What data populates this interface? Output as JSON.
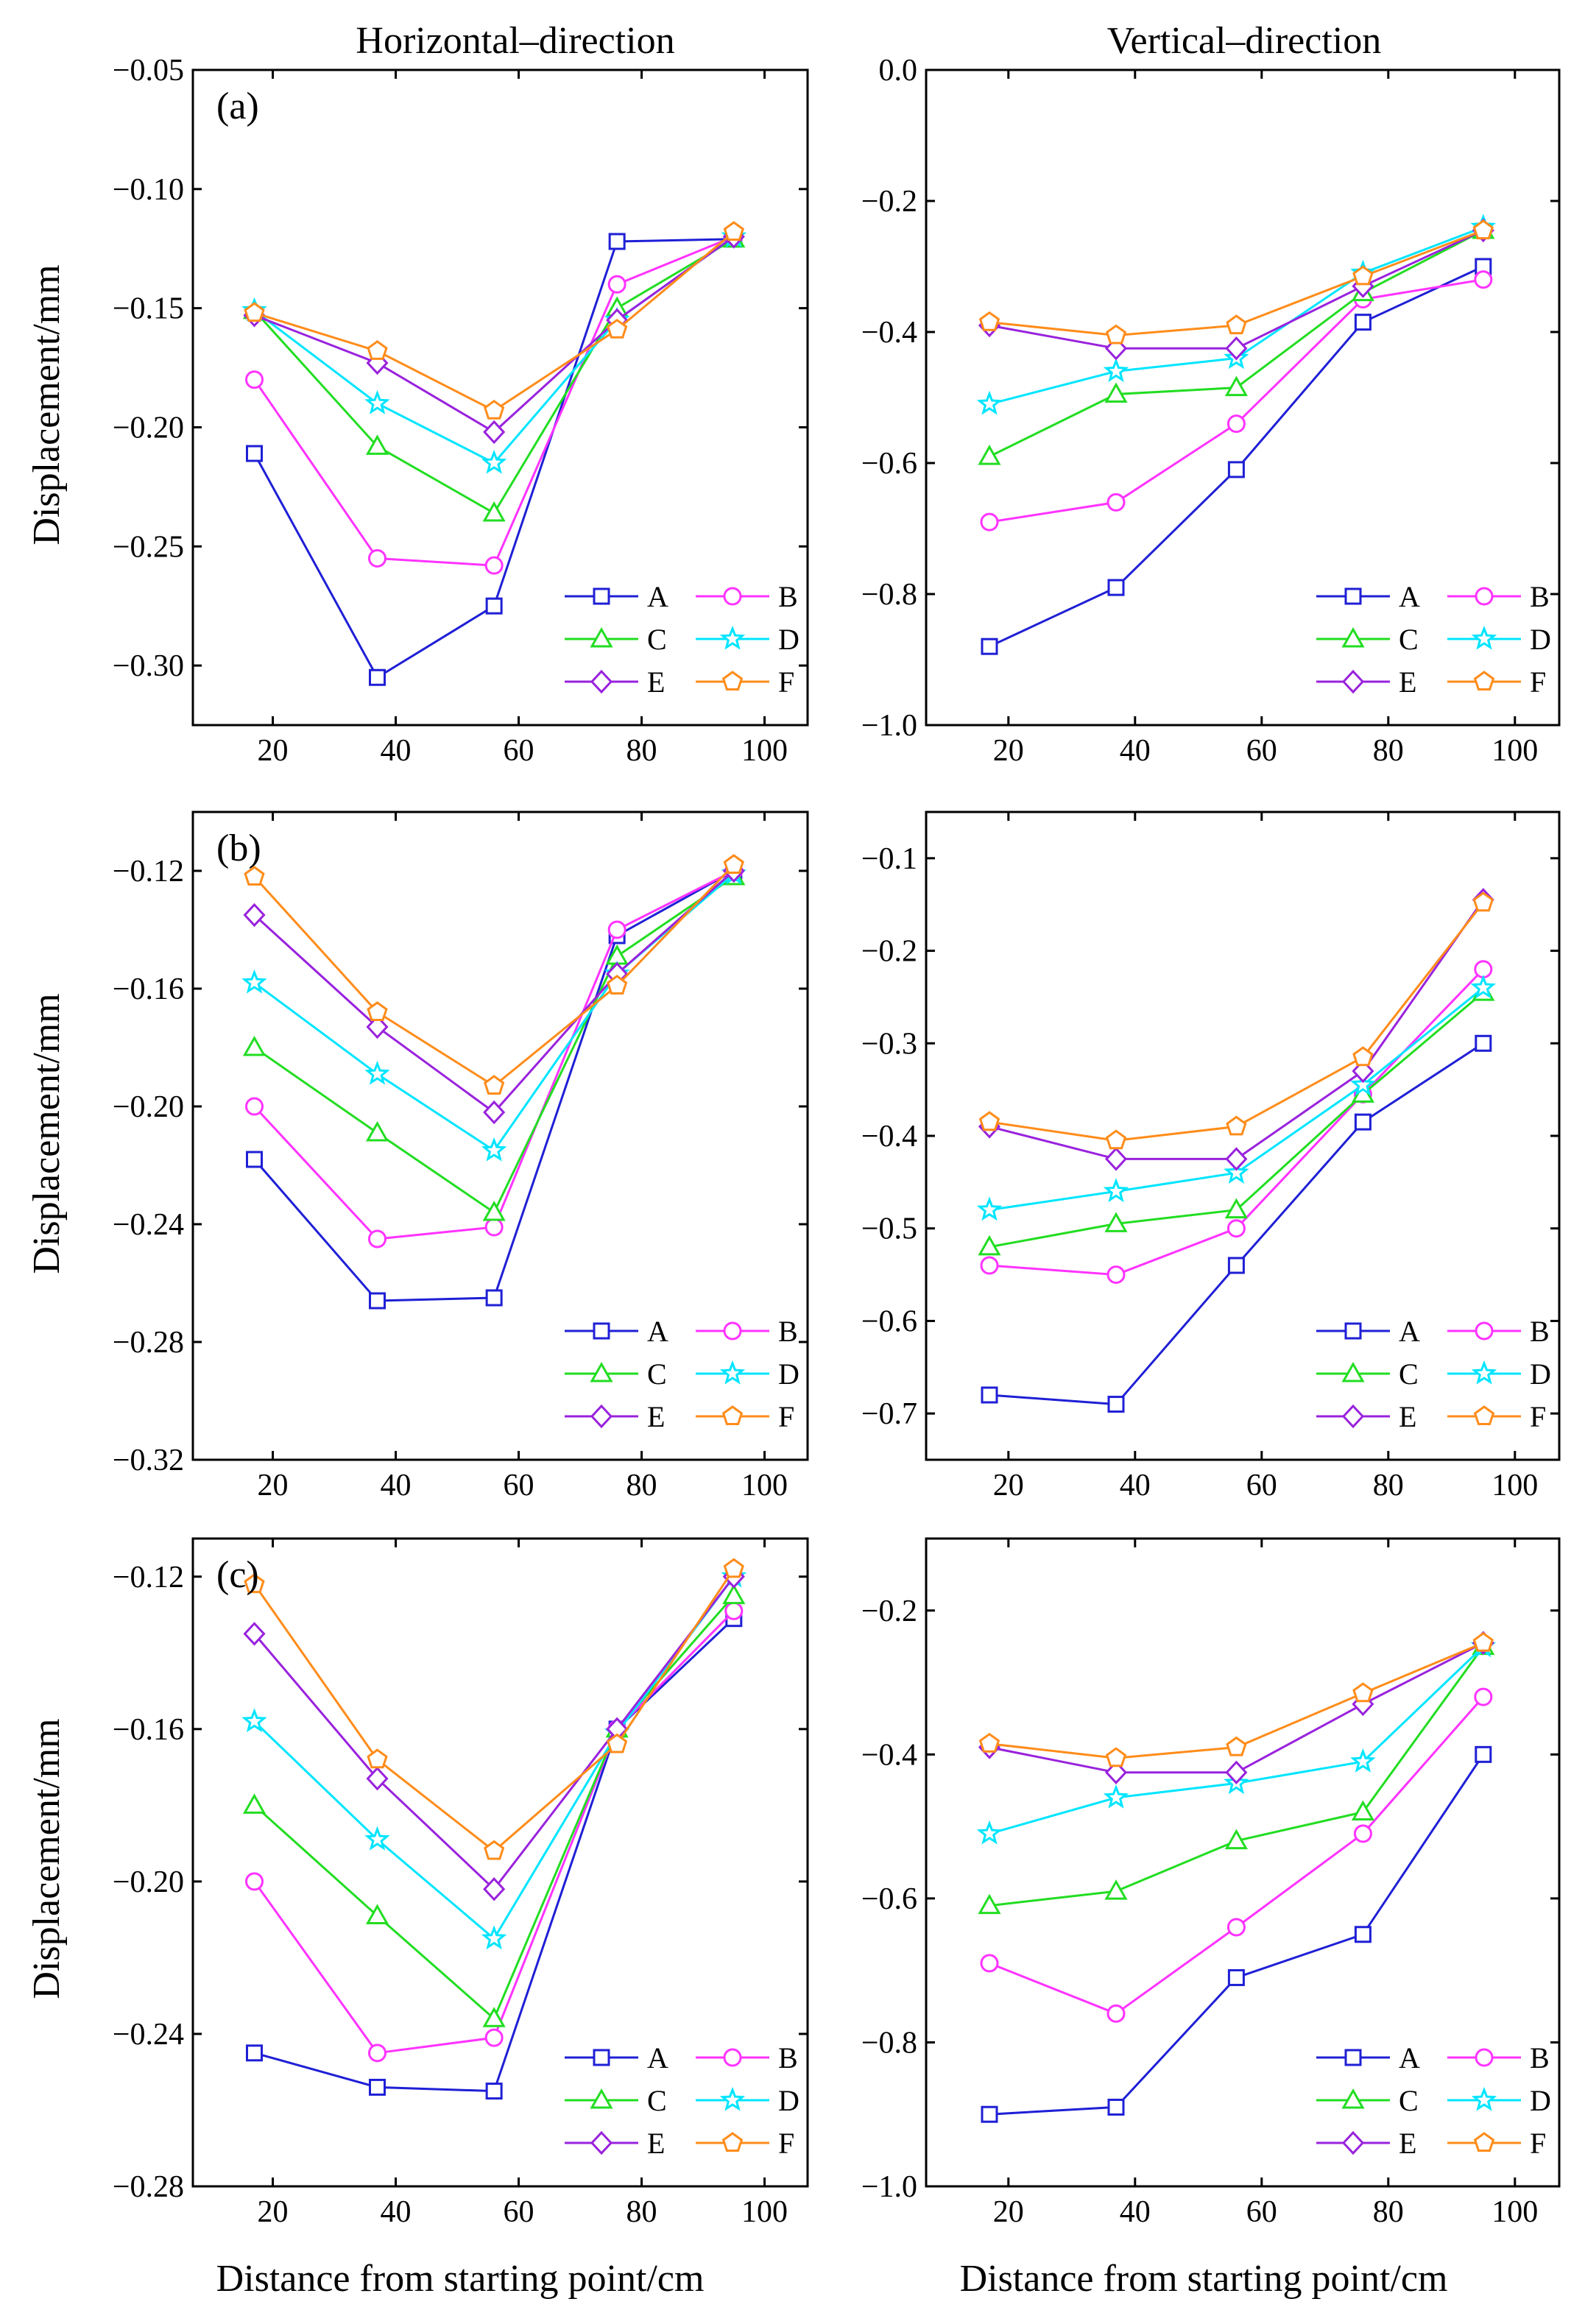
{
  "figure": {
    "column_titles": [
      "Horizontal–direction",
      "Vertical–direction"
    ],
    "xlabel": "Distance from starting point/cm",
    "ylabel": "Displacement/mm"
  },
  "chart_data": [
    {
      "type": "line",
      "panel_label": "(a)",
      "title": "",
      "xlabel": "Distance from starting point/cm",
      "ylabel": "Displacement/mm",
      "x": [
        17,
        37,
        56,
        76,
        95
      ],
      "xlim": [
        7,
        107
      ],
      "ylim": [
        -0.325,
        -0.05
      ],
      "xticks": [
        20,
        40,
        60,
        80,
        100
      ],
      "xtick_labels": [
        "20",
        "40",
        "60",
        "80",
        "100"
      ],
      "yticks": [
        -0.05,
        -0.1,
        -0.15,
        -0.2,
        -0.25,
        -0.3
      ],
      "ytick_labels": [
        "−0.05",
        "−0.10",
        "−0.15",
        "−0.20",
        "−0.25",
        "−0.30"
      ],
      "legend_position": "bottom-right",
      "series": [
        {
          "name": "A",
          "color": "#1f1fd6",
          "marker": "square",
          "values": [
            -0.211,
            -0.305,
            -0.275,
            -0.122,
            -0.121
          ]
        },
        {
          "name": "B",
          "color": "#ff33ff",
          "marker": "circle",
          "values": [
            -0.18,
            -0.255,
            -0.258,
            -0.14,
            -0.12
          ]
        },
        {
          "name": "C",
          "color": "#22dd22",
          "marker": "triangle",
          "values": [
            -0.151,
            -0.208,
            -0.236,
            -0.15,
            -0.121
          ]
        },
        {
          "name": "D",
          "color": "#00e5ff",
          "marker": "star",
          "values": [
            -0.151,
            -0.19,
            -0.215,
            -0.155,
            -0.12
          ]
        },
        {
          "name": "E",
          "color": "#9922dd",
          "marker": "diamond",
          "values": [
            -0.153,
            -0.173,
            -0.202,
            -0.155,
            -0.12
          ]
        },
        {
          "name": "F",
          "color": "#ff8c1a",
          "marker": "pentagon",
          "values": [
            -0.152,
            -0.168,
            -0.193,
            -0.159,
            -0.118
          ]
        }
      ]
    },
    {
      "type": "line",
      "panel_label": "",
      "title": "",
      "xlabel": "Distance from starting point/cm",
      "ylabel": "",
      "x": [
        17,
        37,
        56,
        76,
        95
      ],
      "xlim": [
        7,
        107
      ],
      "ylim": [
        -1.0,
        0.0
      ],
      "xticks": [
        20,
        40,
        60,
        80,
        100
      ],
      "xtick_labels": [
        "20",
        "40",
        "60",
        "80",
        "100"
      ],
      "yticks": [
        0.0,
        -0.2,
        -0.4,
        -0.6,
        -0.8,
        -1.0
      ],
      "ytick_labels": [
        "0.0",
        "−0.2",
        "−0.4",
        "−0.6",
        "−0.8",
        "−1.0"
      ],
      "legend_position": "bottom-right",
      "series": [
        {
          "name": "A",
          "color": "#1f1fd6",
          "marker": "square",
          "values": [
            -0.88,
            -0.79,
            -0.61,
            -0.385,
            -0.3
          ]
        },
        {
          "name": "B",
          "color": "#ff33ff",
          "marker": "circle",
          "values": [
            -0.69,
            -0.66,
            -0.54,
            -0.35,
            -0.32
          ]
        },
        {
          "name": "C",
          "color": "#22dd22",
          "marker": "triangle",
          "values": [
            -0.59,
            -0.495,
            -0.485,
            -0.34,
            -0.245
          ]
        },
        {
          "name": "D",
          "color": "#00e5ff",
          "marker": "star",
          "values": [
            -0.51,
            -0.46,
            -0.44,
            -0.31,
            -0.24
          ]
        },
        {
          "name": "E",
          "color": "#9922dd",
          "marker": "diamond",
          "values": [
            -0.39,
            -0.425,
            -0.425,
            -0.33,
            -0.245
          ]
        },
        {
          "name": "F",
          "color": "#ff8c1a",
          "marker": "pentagon",
          "values": [
            -0.385,
            -0.405,
            -0.39,
            -0.315,
            -0.245
          ]
        }
      ]
    },
    {
      "type": "line",
      "panel_label": "(b)",
      "title": "",
      "xlabel": "Distance from starting point/cm",
      "ylabel": "Displacement/mm",
      "x": [
        17,
        37,
        56,
        76,
        95
      ],
      "xlim": [
        7,
        107
      ],
      "ylim": [
        -0.32,
        -0.1
      ],
      "xticks": [
        20,
        40,
        60,
        80,
        100
      ],
      "xtick_labels": [
        "20",
        "40",
        "60",
        "80",
        "100"
      ],
      "yticks": [
        -0.12,
        -0.16,
        -0.2,
        -0.24,
        -0.28,
        -0.32
      ],
      "ytick_labels": [
        "−0.12",
        "−0.16",
        "−0.20",
        "−0.24",
        "−0.28",
        "−0.32"
      ],
      "legend_position": "bottom-right",
      "series": [
        {
          "name": "A",
          "color": "#1f1fd6",
          "marker": "square",
          "values": [
            -0.218,
            -0.266,
            -0.265,
            -0.142,
            -0.12
          ]
        },
        {
          "name": "B",
          "color": "#ff33ff",
          "marker": "circle",
          "values": [
            -0.2,
            -0.245,
            -0.241,
            -0.14,
            -0.12
          ]
        },
        {
          "name": "C",
          "color": "#22dd22",
          "marker": "triangle",
          "values": [
            -0.18,
            -0.209,
            -0.236,
            -0.149,
            -0.122
          ]
        },
        {
          "name": "D",
          "color": "#00e5ff",
          "marker": "star",
          "values": [
            -0.158,
            -0.189,
            -0.215,
            -0.155,
            -0.121
          ]
        },
        {
          "name": "E",
          "color": "#9922dd",
          "marker": "diamond",
          "values": [
            -0.135,
            -0.173,
            -0.202,
            -0.155,
            -0.12
          ]
        },
        {
          "name": "F",
          "color": "#ff8c1a",
          "marker": "pentagon",
          "values": [
            -0.122,
            -0.168,
            -0.193,
            -0.159,
            -0.118
          ]
        }
      ]
    },
    {
      "type": "line",
      "panel_label": "",
      "title": "",
      "xlabel": "Distance from starting point/cm",
      "ylabel": "",
      "x": [
        17,
        37,
        56,
        76,
        95
      ],
      "xlim": [
        7,
        107
      ],
      "ylim": [
        -0.75,
        -0.05
      ],
      "xticks": [
        20,
        40,
        60,
        80,
        100
      ],
      "xtick_labels": [
        "20",
        "40",
        "60",
        "80",
        "100"
      ],
      "yticks": [
        -0.1,
        -0.2,
        -0.3,
        -0.4,
        -0.5,
        -0.6,
        -0.7
      ],
      "ytick_labels": [
        "−0.1",
        "−0.2",
        "−0.3",
        "−0.4",
        "−0.5",
        "−0.6",
        "−0.7"
      ],
      "legend_position": "bottom-right",
      "series": [
        {
          "name": "A",
          "color": "#1f1fd6",
          "marker": "square",
          "values": [
            -0.68,
            -0.69,
            -0.54,
            -0.385,
            -0.3
          ]
        },
        {
          "name": "B",
          "color": "#ff33ff",
          "marker": "circle",
          "values": [
            -0.54,
            -0.55,
            -0.5,
            -0.355,
            -0.22
          ]
        },
        {
          "name": "C",
          "color": "#22dd22",
          "marker": "triangle",
          "values": [
            -0.52,
            -0.495,
            -0.48,
            -0.355,
            -0.245
          ]
        },
        {
          "name": "D",
          "color": "#00e5ff",
          "marker": "star",
          "values": [
            -0.48,
            -0.46,
            -0.44,
            -0.345,
            -0.24
          ]
        },
        {
          "name": "E",
          "color": "#9922dd",
          "marker": "diamond",
          "values": [
            -0.39,
            -0.425,
            -0.425,
            -0.33,
            -0.145
          ]
        },
        {
          "name": "F",
          "color": "#ff8c1a",
          "marker": "pentagon",
          "values": [
            -0.385,
            -0.405,
            -0.39,
            -0.315,
            -0.148
          ]
        }
      ]
    },
    {
      "type": "line",
      "panel_label": "(c)",
      "title": "",
      "xlabel": "Distance from starting point/cm",
      "ylabel": "Displacement/mm",
      "x": [
        17,
        37,
        56,
        76,
        95
      ],
      "xlim": [
        7,
        107
      ],
      "ylim": [
        -0.28,
        -0.11
      ],
      "xticks": [
        20,
        40,
        60,
        80,
        100
      ],
      "xtick_labels": [
        "20",
        "40",
        "60",
        "80",
        "100"
      ],
      "yticks": [
        -0.12,
        -0.16,
        -0.2,
        -0.24,
        -0.28
      ],
      "ytick_labels": [
        "−0.12",
        "−0.16",
        "−0.20",
        "−0.24",
        "−0.28"
      ],
      "legend_position": "bottom-right",
      "series": [
        {
          "name": "A",
          "color": "#1f1fd6",
          "marker": "square",
          "values": [
            -0.245,
            -0.254,
            -0.255,
            -0.16,
            -0.131
          ]
        },
        {
          "name": "B",
          "color": "#ff33ff",
          "marker": "circle",
          "values": [
            -0.2,
            -0.245,
            -0.241,
            -0.16,
            -0.129
          ]
        },
        {
          "name": "C",
          "color": "#22dd22",
          "marker": "triangle",
          "values": [
            -0.18,
            -0.209,
            -0.236,
            -0.16,
            -0.125
          ]
        },
        {
          "name": "D",
          "color": "#00e5ff",
          "marker": "star",
          "values": [
            -0.158,
            -0.189,
            -0.215,
            -0.161,
            -0.12
          ]
        },
        {
          "name": "E",
          "color": "#9922dd",
          "marker": "diamond",
          "values": [
            -0.135,
            -0.173,
            -0.202,
            -0.16,
            -0.12
          ]
        },
        {
          "name": "F",
          "color": "#ff8c1a",
          "marker": "pentagon",
          "values": [
            -0.122,
            -0.168,
            -0.192,
            -0.164,
            -0.118
          ]
        }
      ]
    },
    {
      "type": "line",
      "panel_label": "",
      "title": "",
      "xlabel": "Distance from starting point/cm",
      "ylabel": "",
      "x": [
        17,
        37,
        56,
        76,
        95
      ],
      "xlim": [
        7,
        107
      ],
      "ylim": [
        -1.0,
        -0.1
      ],
      "xticks": [
        20,
        40,
        60,
        80,
        100
      ],
      "xtick_labels": [
        "20",
        "40",
        "60",
        "80",
        "100"
      ],
      "yticks": [
        -0.2,
        -0.4,
        -0.6,
        -0.8,
        -1.0
      ],
      "ytick_labels": [
        "−0.2",
        "−0.4",
        "−0.6",
        "−0.8",
        "−1.0"
      ],
      "legend_position": "bottom-right",
      "series": [
        {
          "name": "A",
          "color": "#1f1fd6",
          "marker": "square",
          "values": [
            -0.9,
            -0.89,
            -0.71,
            -0.65,
            -0.4
          ]
        },
        {
          "name": "B",
          "color": "#ff33ff",
          "marker": "circle",
          "values": [
            -0.69,
            -0.76,
            -0.64,
            -0.51,
            -0.32
          ]
        },
        {
          "name": "C",
          "color": "#22dd22",
          "marker": "triangle",
          "values": [
            -0.61,
            -0.59,
            -0.52,
            -0.48,
            -0.25
          ]
        },
        {
          "name": "D",
          "color": "#00e5ff",
          "marker": "star",
          "values": [
            -0.51,
            -0.46,
            -0.44,
            -0.41,
            -0.25
          ]
        },
        {
          "name": "E",
          "color": "#9922dd",
          "marker": "diamond",
          "values": [
            -0.39,
            -0.425,
            -0.425,
            -0.33,
            -0.245
          ]
        },
        {
          "name": "F",
          "color": "#ff8c1a",
          "marker": "pentagon",
          "values": [
            -0.385,
            -0.405,
            -0.39,
            -0.315,
            -0.245
          ]
        }
      ]
    }
  ]
}
